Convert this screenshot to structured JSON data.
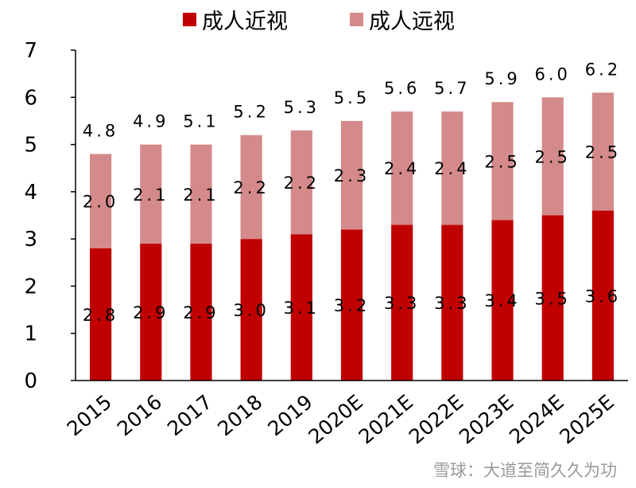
{
  "chart_data": {
    "type": "bar",
    "stacked": true,
    "categories": [
      "2015",
      "2016",
      "2017",
      "2018",
      "2019",
      "2020E",
      "2021E",
      "2022E",
      "2023E",
      "2024E",
      "2025E"
    ],
    "series": [
      {
        "name": "成人近视",
        "color": "#c00000",
        "values": [
          2.8,
          2.9,
          2.9,
          3.0,
          3.1,
          3.2,
          3.3,
          3.3,
          3.4,
          3.5,
          3.6
        ]
      },
      {
        "name": "成人远视",
        "color": "#d48a8a",
        "values": [
          2.0,
          2.1,
          2.1,
          2.2,
          2.2,
          2.3,
          2.4,
          2.4,
          2.5,
          2.5,
          2.5
        ]
      }
    ],
    "totals": [
      4.8,
      4.9,
      5.1,
      5.2,
      5.3,
      5.5,
      5.6,
      5.7,
      5.9,
      6.0,
      6.2
    ],
    "ylim": [
      0,
      7
    ],
    "yticks": [
      0,
      1,
      2,
      3,
      4,
      5,
      6,
      7
    ],
    "grid": false,
    "legend_position": "top"
  },
  "watermark": "雪球：大道至简久久为功"
}
